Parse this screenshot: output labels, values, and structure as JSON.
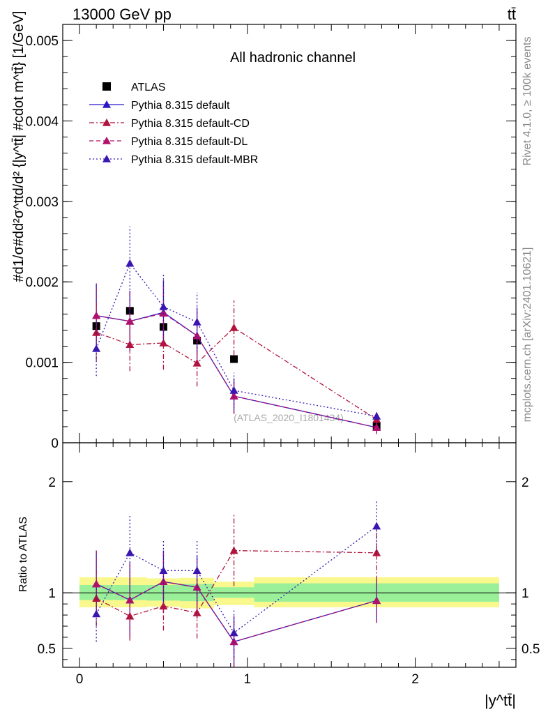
{
  "header": {
    "energy_label": "13000 GeV pp",
    "process_label": "tt̄"
  },
  "side_labels": {
    "rivet": "Rivet 4.1.0, ≥ 100k events",
    "mcplots": "mcplots.cern.ch [arXiv:2401.10621]"
  },
  "chart_data": [
    {
      "panel": "main",
      "type": "scatter",
      "title": "All hadronic channel",
      "ylabel": "#d1/σ#dd²σ^ttd/d² {|y^tt̄| #cdot m^tt̄} [1/GeV]",
      "watermark": "(ATLAS_2020_I1801434)",
      "xlim": [
        -0.1,
        2.6
      ],
      "ylim": [
        0,
        0.0052
      ],
      "y_ticks": [
        0,
        0.001,
        0.002,
        0.003,
        0.004,
        0.005
      ],
      "y_tick_labels": [
        "0",
        "0.001",
        "0.002",
        "0.003",
        "0.004",
        "0.005"
      ],
      "legend_position": "top-left",
      "x": [
        0.1,
        0.3,
        0.5,
        0.7,
        0.92,
        1.77
      ],
      "series": [
        {
          "name": "ATLAS",
          "color": "#000000",
          "marker": "square",
          "line": "none",
          "values": [
            0.00145,
            0.00164,
            0.00144,
            0.00127,
            0.00104,
            0.00021
          ],
          "err": [
            0,
            0,
            0,
            0,
            0,
            0
          ]
        },
        {
          "name": "Pythia 8.315 default",
          "color": "#2a18c8",
          "marker": "triangle",
          "line": "solid",
          "values": [
            0.00158,
            0.00151,
            0.00162,
            0.00133,
            0.00058,
            0.00019
          ],
          "err": [
            0.0004,
            0.00038,
            0.0004,
            0.00035,
            0.00022,
            8e-05
          ]
        },
        {
          "name": "Pythia 8.315 default-CD",
          "color": "#b0143c",
          "marker": "triangle",
          "line": "dashdot",
          "values": [
            0.00137,
            0.00122,
            0.00124,
            0.00099,
            0.00143,
            0.00029
          ],
          "err": [
            0.00035,
            0.00033,
            0.00033,
            0.00029,
            0.00034,
            9e-05
          ]
        },
        {
          "name": "Pythia 8.315 default-DL",
          "color": "#b0106a",
          "marker": "triangle",
          "line": "dashed",
          "values": [
            0.00158,
            0.00151,
            0.00161,
            0.00133,
            0.00058,
            0.00019
          ],
          "err": [
            0.0004,
            0.00038,
            0.0004,
            0.00035,
            0.00022,
            8e-05
          ]
        },
        {
          "name": "Pythia 8.315 default-MBR",
          "color": "#3a16b0",
          "marker": "triangle",
          "line": "dotted",
          "values": [
            0.00117,
            0.00223,
            0.00169,
            0.0015,
            0.00065,
            0.00033
          ],
          "err": [
            0.00034,
            0.00046,
            0.0004,
            0.00037,
            0.00022,
            4e-05
          ]
        }
      ]
    },
    {
      "panel": "ratio",
      "type": "scatter",
      "ylabel": "Ratio to ATLAS",
      "xlabel": "|y^tt̄|",
      "xlim": [
        -0.1,
        2.6
      ],
      "ylim": [
        0.33,
        2.35
      ],
      "y_ticks": [
        0.5,
        1,
        2
      ],
      "y_tick_labels": [
        "0.5",
        "1",
        "2"
      ],
      "x_ticks": [
        0,
        1,
        2
      ],
      "x_tick_labels": [
        "0",
        "1",
        "2"
      ],
      "reference_line": 1,
      "bands": {
        "bin_edges": [
          0,
          0.2,
          0.4,
          0.6,
          0.8,
          1.04,
          2.5
        ],
        "stat_lo": [
          0.935,
          0.935,
          0.93,
          0.925,
          0.955,
          0.92
        ],
        "stat_hi": [
          1.07,
          1.07,
          1.07,
          1.08,
          1.05,
          1.085
        ],
        "syst_lo": [
          0.87,
          0.87,
          0.875,
          0.86,
          0.89,
          0.87
        ],
        "syst_hi": [
          1.14,
          1.14,
          1.13,
          1.135,
          1.1,
          1.14
        ],
        "stat_color": "#99f099",
        "syst_color": "#f8f88c"
      },
      "x": [
        0.1,
        0.3,
        0.5,
        0.7,
        0.92,
        1.77
      ],
      "series": [
        {
          "name": "Pythia 8.315 default",
          "color": "#2a18c8",
          "line": "solid",
          "values": [
            1.08,
            0.935,
            1.1,
            1.05,
            0.56,
            0.93
          ],
          "err": [
            0.3,
            0.34,
            0.28,
            0.28,
            0.23,
            0.2
          ]
        },
        {
          "name": "Pythia 8.315 default-CD",
          "color": "#b0143c",
          "line": "dashdot",
          "values": [
            0.95,
            0.79,
            0.88,
            0.82,
            1.38,
            1.36
          ],
          "err": [
            0.25,
            0.22,
            0.22,
            0.23,
            0.32,
            0.25
          ]
        },
        {
          "name": "Pythia 8.315 default-DL",
          "color": "#b0106a",
          "line": "dashed",
          "values": [
            1.08,
            0.935,
            1.1,
            1.05,
            0.56,
            0.93
          ],
          "err": [
            0.3,
            0.34,
            0.28,
            0.28,
            0.23,
            0.2
          ]
        },
        {
          "name": "Pythia 8.315 default-MBR",
          "color": "#3a16b0",
          "line": "dotted",
          "values": [
            0.81,
            1.36,
            1.2,
            1.2,
            0.64,
            1.6
          ],
          "err": [
            0.25,
            0.34,
            0.28,
            0.28,
            0.22,
            0.23
          ]
        }
      ]
    }
  ]
}
